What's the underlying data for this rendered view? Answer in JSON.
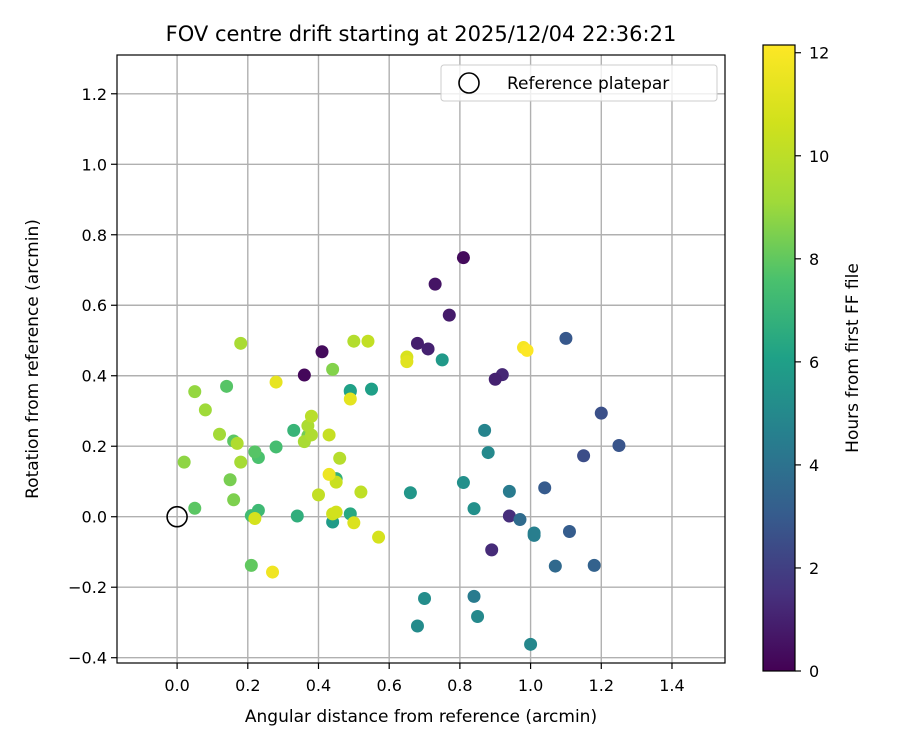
{
  "chart_data": {
    "type": "scatter",
    "title": "FOV centre drift starting at 2025/12/04 22:36:21",
    "xlabel": "Angular distance from reference (arcmin)",
    "ylabel": "Rotation from reference (arcmin)",
    "xlim": [
      -0.17,
      1.55
    ],
    "ylim": [
      -0.415,
      1.31
    ],
    "xticks": [
      0.0,
      0.2,
      0.4,
      0.6,
      0.8,
      1.0,
      1.2,
      1.4
    ],
    "xtick_labels": [
      "0.0",
      "0.2",
      "0.4",
      "0.6",
      "0.8",
      "1.0",
      "1.2",
      "1.4"
    ],
    "yticks": [
      -0.4,
      -0.2,
      0.0,
      0.2,
      0.4,
      0.6,
      0.8,
      1.0,
      1.2
    ],
    "ytick_labels": [
      "−0.4",
      "−0.2",
      "0.0",
      "0.2",
      "0.4",
      "0.6",
      "0.8",
      "1.0",
      "1.2"
    ],
    "grid": true,
    "legend": {
      "position": "top-right",
      "entries": [
        "Reference platepar"
      ]
    },
    "reference_point": {
      "x": 0.0,
      "y": 0.0,
      "marker": "open-circle"
    },
    "colorbar": {
      "label": "Hours from first FF file",
      "colormap": "viridis",
      "range": [
        0,
        12.15
      ],
      "ticks": [
        0,
        2,
        4,
        6,
        8,
        10,
        12
      ],
      "tick_labels": [
        "0",
        "2",
        "4",
        "6",
        "8",
        "10",
        "12"
      ]
    },
    "points": [
      {
        "x": 0.81,
        "y": 0.735,
        "h": 0.3
      },
      {
        "x": 0.73,
        "y": 0.66,
        "h": 0.6
      },
      {
        "x": 0.77,
        "y": 0.572,
        "h": 0.8
      },
      {
        "x": 0.68,
        "y": 0.492,
        "h": 0.9
      },
      {
        "x": 0.71,
        "y": 0.476,
        "h": 1.0
      },
      {
        "x": 0.41,
        "y": 0.468,
        "h": 0.3
      },
      {
        "x": 0.36,
        "y": 0.402,
        "h": 0.2
      },
      {
        "x": 0.92,
        "y": 0.403,
        "h": 1.2
      },
      {
        "x": 0.9,
        "y": 0.39,
        "h": 1.0
      },
      {
        "x": 0.94,
        "y": 0.002,
        "h": 1.4
      },
      {
        "x": 0.89,
        "y": -0.094,
        "h": 1.3
      },
      {
        "x": 1.1,
        "y": 0.506,
        "h": 2.9
      },
      {
        "x": 1.2,
        "y": 0.294,
        "h": 2.6
      },
      {
        "x": 1.25,
        "y": 0.202,
        "h": 2.8
      },
      {
        "x": 1.15,
        "y": 0.173,
        "h": 2.5
      },
      {
        "x": 1.04,
        "y": 0.082,
        "h": 3.0
      },
      {
        "x": 1.11,
        "y": -0.042,
        "h": 3.1
      },
      {
        "x": 1.18,
        "y": -0.138,
        "h": 3.3
      },
      {
        "x": 1.07,
        "y": -0.14,
        "h": 3.6
      },
      {
        "x": 0.97,
        "y": -0.008,
        "h": 3.7
      },
      {
        "x": 0.94,
        "y": 0.072,
        "h": 4.4
      },
      {
        "x": 1.01,
        "y": -0.046,
        "h": 4.6
      },
      {
        "x": 1.01,
        "y": -0.053,
        "h": 4.5
      },
      {
        "x": 1.0,
        "y": -0.362,
        "h": 4.9
      },
      {
        "x": 0.87,
        "y": 0.245,
        "h": 4.8
      },
      {
        "x": 0.88,
        "y": 0.182,
        "h": 5.0
      },
      {
        "x": 0.81,
        "y": 0.097,
        "h": 5.3
      },
      {
        "x": 0.84,
        "y": 0.023,
        "h": 5.3
      },
      {
        "x": 0.84,
        "y": -0.226,
        "h": 4.4
      },
      {
        "x": 0.85,
        "y": -0.283,
        "h": 5.0
      },
      {
        "x": 0.7,
        "y": -0.232,
        "h": 5.2
      },
      {
        "x": 0.68,
        "y": -0.31,
        "h": 5.1
      },
      {
        "x": 0.66,
        "y": 0.068,
        "h": 5.6
      },
      {
        "x": 0.75,
        "y": 0.445,
        "h": 5.7
      },
      {
        "x": 0.55,
        "y": 0.362,
        "h": 6.0
      },
      {
        "x": 0.49,
        "y": 0.358,
        "h": 5.9
      },
      {
        "x": 0.49,
        "y": 0.355,
        "h": 6.1
      },
      {
        "x": 0.44,
        "y": -0.015,
        "h": 5.8
      },
      {
        "x": 0.49,
        "y": 0.008,
        "h": 6.4
      },
      {
        "x": 0.34,
        "y": 0.002,
        "h": 6.7
      },
      {
        "x": 0.45,
        "y": 0.108,
        "h": 6.8
      },
      {
        "x": 0.33,
        "y": 0.245,
        "h": 7.0
      },
      {
        "x": 0.23,
        "y": 0.018,
        "h": 7.2
      },
      {
        "x": 0.21,
        "y": 0.003,
        "h": 7.3
      },
      {
        "x": 0.28,
        "y": 0.198,
        "h": 7.4
      },
      {
        "x": 0.23,
        "y": 0.168,
        "h": 7.6
      },
      {
        "x": 0.22,
        "y": 0.184,
        "h": 7.8
      },
      {
        "x": 0.16,
        "y": 0.215,
        "h": 7.9
      },
      {
        "x": 0.14,
        "y": 0.37,
        "h": 7.8
      },
      {
        "x": 0.05,
        "y": 0.024,
        "h": 7.9
      },
      {
        "x": 0.21,
        "y": -0.138,
        "h": 8.0
      },
      {
        "x": 0.16,
        "y": 0.048,
        "h": 8.5
      },
      {
        "x": 0.15,
        "y": 0.105,
        "h": 8.4
      },
      {
        "x": 0.37,
        "y": 0.23,
        "h": 8.3
      },
      {
        "x": 0.44,
        "y": 0.418,
        "h": 8.6
      },
      {
        "x": 0.02,
        "y": 0.155,
        "h": 8.8
      },
      {
        "x": 0.05,
        "y": 0.355,
        "h": 8.9
      },
      {
        "x": 0.08,
        "y": 0.303,
        "h": 9.1
      },
      {
        "x": 0.12,
        "y": 0.234,
        "h": 9.2
      },
      {
        "x": 0.18,
        "y": 0.155,
        "h": 9.3
      },
      {
        "x": 0.18,
        "y": 0.492,
        "h": 9.4
      },
      {
        "x": 0.17,
        "y": 0.208,
        "h": 9.6
      },
      {
        "x": 0.36,
        "y": 0.213,
        "h": 9.4
      },
      {
        "x": 0.37,
        "y": 0.258,
        "h": 9.5
      },
      {
        "x": 0.38,
        "y": 0.232,
        "h": 9.6
      },
      {
        "x": 0.38,
        "y": 0.285,
        "h": 9.9
      },
      {
        "x": 0.46,
        "y": 0.166,
        "h": 9.8
      },
      {
        "x": 0.5,
        "y": 0.498,
        "h": 9.7
      },
      {
        "x": 0.54,
        "y": 0.498,
        "h": 10.2
      },
      {
        "x": 0.43,
        "y": 0.232,
        "h": 10.3
      },
      {
        "x": 0.4,
        "y": 0.062,
        "h": 10.2
      },
      {
        "x": 0.45,
        "y": 0.098,
        "h": 10.4
      },
      {
        "x": 0.52,
        "y": 0.07,
        "h": 10.1
      },
      {
        "x": 0.44,
        "y": 0.008,
        "h": 10.6
      },
      {
        "x": 0.45,
        "y": 0.013,
        "h": 10.7
      },
      {
        "x": 0.22,
        "y": -0.005,
        "h": 10.8
      },
      {
        "x": 0.57,
        "y": -0.058,
        "h": 10.8
      },
      {
        "x": 0.5,
        "y": -0.017,
        "h": 11.0
      },
      {
        "x": 0.65,
        "y": 0.453,
        "h": 10.9
      },
      {
        "x": 0.65,
        "y": 0.44,
        "h": 11.2
      },
      {
        "x": 0.49,
        "y": 0.334,
        "h": 11.3
      },
      {
        "x": 0.28,
        "y": 0.382,
        "h": 11.4
      },
      {
        "x": 0.43,
        "y": 0.12,
        "h": 11.6
      },
      {
        "x": 0.27,
        "y": -0.157,
        "h": 11.7
      },
      {
        "x": 0.98,
        "y": 0.48,
        "h": 11.9
      },
      {
        "x": 0.99,
        "y": 0.472,
        "h": 12.1
      }
    ]
  }
}
